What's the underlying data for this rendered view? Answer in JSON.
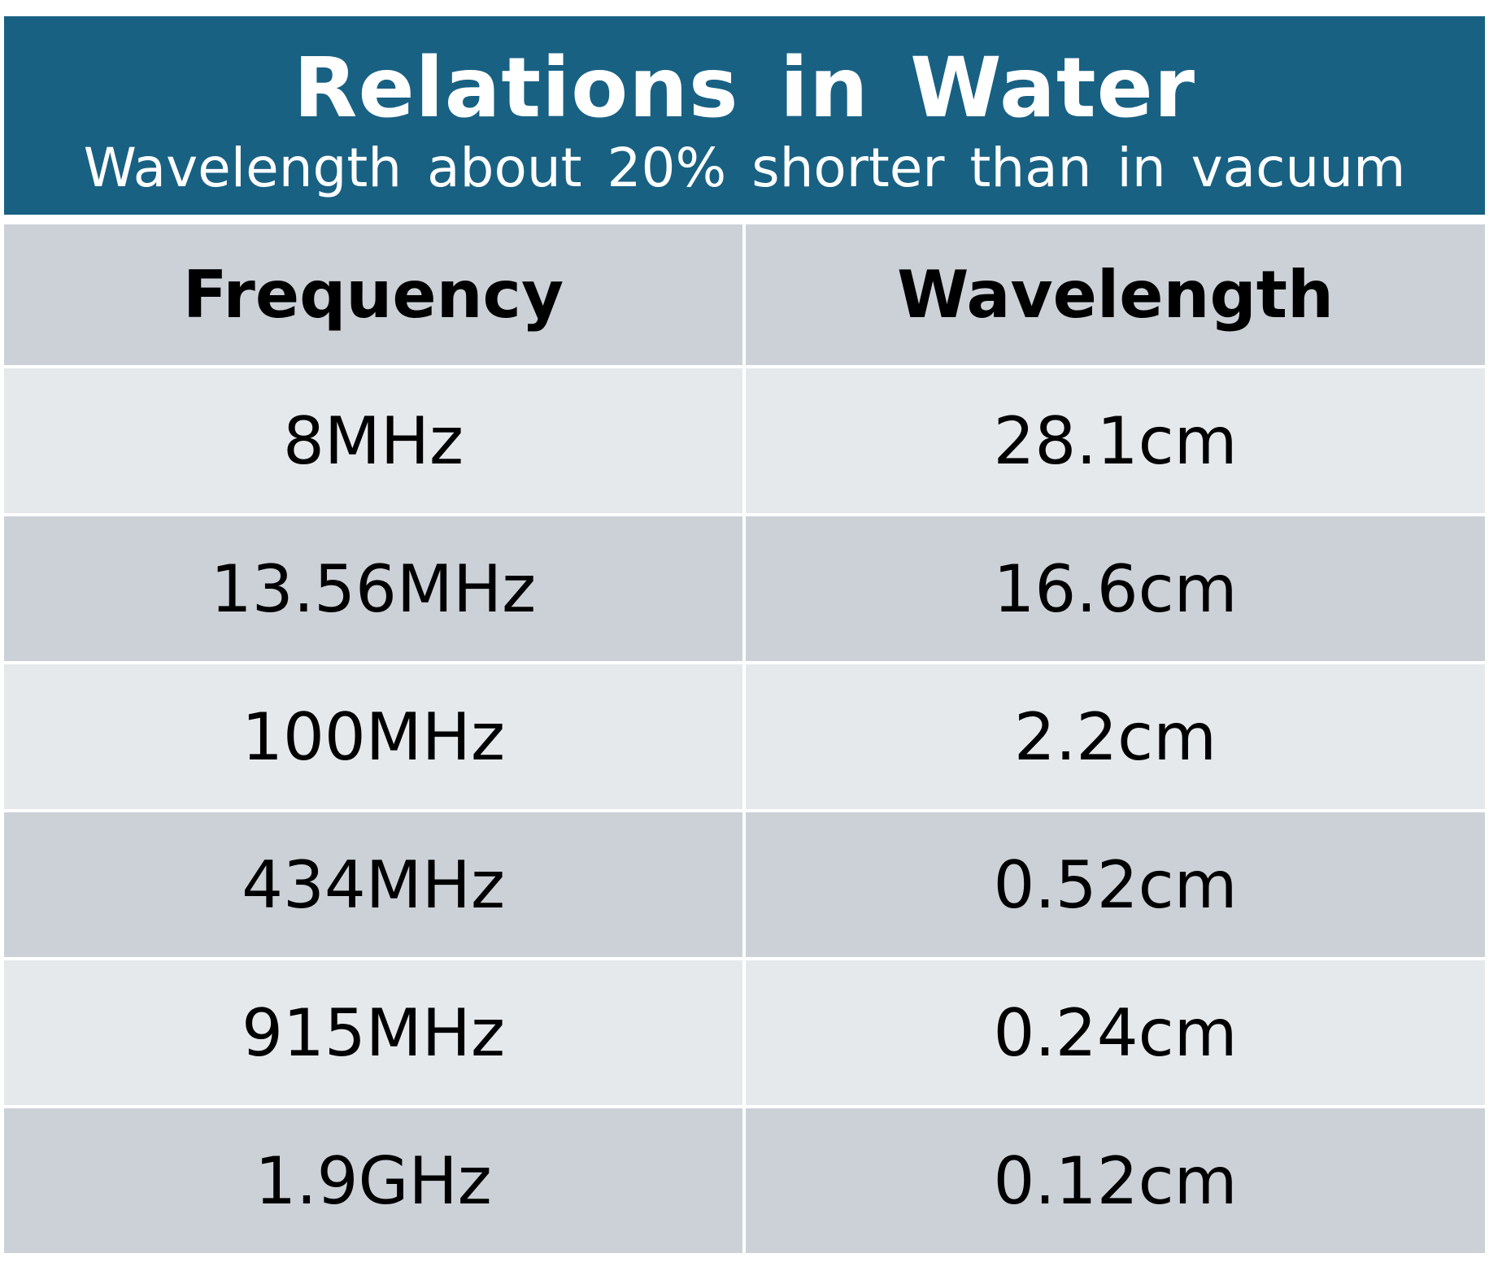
{
  "title": "Relations in Water",
  "subtitle": "Wavelength about 20% shorter than in vacuum",
  "table": {
    "headers": [
      "Frequency",
      "Wavelength"
    ],
    "rows": [
      [
        "8MHz",
        "28.1cm"
      ],
      [
        "13.56MHz",
        "16.6cm"
      ],
      [
        "100MHz",
        "2.2cm"
      ],
      [
        "434MHz",
        "0.52cm"
      ],
      [
        "915MHz",
        "0.24cm"
      ],
      [
        "1.9GHz",
        "0.12cm"
      ]
    ]
  },
  "colors": {
    "banner": "#186183",
    "header_row": "#ccd1d8",
    "row_light": "#e6e9ec",
    "row_dark": "#ccd1d8"
  }
}
